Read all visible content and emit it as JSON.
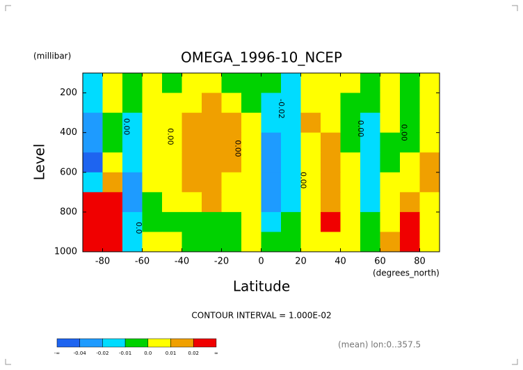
{
  "chart_data": {
    "type": "contour",
    "title": "OMEGA_1996-10_NCEP",
    "y_unit": "(millibar)",
    "y_label": "Level",
    "x_label": "Latitude",
    "x_unit": "(degrees_north)",
    "contour_interval": "CONTOUR INTERVAL = 1.000E-02",
    "footnote": "(mean) lon:0..357.5",
    "xlim": [
      -90,
      90
    ],
    "ylim": [
      1000,
      100
    ],
    "xticks": [
      -80,
      -60,
      -40,
      -20,
      0,
      20,
      40,
      60,
      80
    ],
    "yticks": [
      200,
      400,
      600,
      800,
      1000
    ],
    "x": [
      -85,
      -75,
      -65,
      -55,
      -45,
      -35,
      -25,
      -15,
      -5,
      5,
      15,
      25,
      35,
      45,
      55,
      65,
      75,
      85
    ],
    "y": [
      150,
      250,
      350,
      450,
      550,
      650,
      750,
      850,
      950
    ],
    "z": [
      [
        -0.015,
        0.005,
        -0.005,
        0.003,
        -0.005,
        0.005,
        0.005,
        -0.003,
        -0.005,
        -0.01,
        -0.015,
        0.005,
        0.005,
        0.003,
        -0.005,
        0.003,
        -0.005,
        0.005
      ],
      [
        -0.02,
        0.005,
        -0.005,
        0.005,
        0.005,
        0.008,
        0.012,
        0.008,
        -0.003,
        -0.015,
        -0.02,
        0.008,
        0.005,
        -0.003,
        -0.005,
        0.005,
        -0.005,
        0.005
      ],
      [
        -0.03,
        -0.005,
        -0.015,
        0.005,
        0.005,
        0.012,
        0.014,
        0.012,
        0.003,
        -0.02,
        -0.02,
        0.012,
        0.008,
        -0.005,
        -0.012,
        0.003,
        -0.005,
        0.005
      ],
      [
        -0.03,
        -0.005,
        -0.015,
        0.005,
        0.005,
        0.013,
        0.014,
        0.012,
        0.005,
        -0.025,
        -0.02,
        0.005,
        0.012,
        -0.003,
        -0.012,
        -0.003,
        -0.005,
        0.005
      ],
      [
        -0.045,
        0.005,
        -0.015,
        0.005,
        0.005,
        0.013,
        0.014,
        0.01,
        0.005,
        -0.025,
        -0.02,
        0.003,
        0.013,
        0.003,
        -0.012,
        -0.003,
        0.003,
        0.012
      ],
      [
        -0.02,
        0.015,
        -0.025,
        0.003,
        0.005,
        0.012,
        0.013,
        0.008,
        0.005,
        -0.025,
        -0.015,
        0.005,
        0.013,
        0.003,
        -0.012,
        0.003,
        0.005,
        0.012
      ],
      [
        0.03,
        0.03,
        -0.025,
        -0.003,
        0.005,
        0.008,
        0.011,
        0.005,
        0.005,
        -0.03,
        -0.012,
        0.005,
        0.015,
        0.003,
        -0.012,
        0.005,
        0.012,
        0.005
      ],
      [
        0.04,
        0.04,
        -0.015,
        -0.005,
        -0.003,
        -0.003,
        -0.003,
        -0.003,
        0.003,
        -0.02,
        -0.01,
        0.005,
        0.025,
        0.003,
        -0.008,
        0.008,
        0.025,
        0.005
      ],
      [
        0.04,
        0.03,
        -0.015,
        0.005,
        0.005,
        -0.005,
        -0.005,
        -0.005,
        0.003,
        -0.005,
        -0.003,
        0.005,
        0.008,
        0.005,
        -0.003,
        0.015,
        0.03,
        0.005
      ]
    ],
    "colorbar": {
      "ticks": [
        {
          "label": "-∞"
        },
        -0.04,
        -0.02,
        -0.01,
        {
          "value": 0,
          "label": "0.0"
        },
        0.01,
        0.02,
        {
          "label": "∞"
        }
      ],
      "colors": [
        "#1e64f0",
        "#1e9bff",
        "#00dcff",
        "#00d200",
        "#ffff00",
        "#f0a000",
        "#f00000"
      ]
    },
    "annotations": [
      {
        "text": "-0.02",
        "x": 10,
        "y": 280
      },
      {
        "text": "0.00",
        "x": -68,
        "y": 370
      },
      {
        "text": "0.00",
        "x": -46,
        "y": 420
      },
      {
        "text": "0.00",
        "x": -12,
        "y": 480
      },
      {
        "text": "0.00",
        "x": 21,
        "y": 640
      },
      {
        "text": "0.00",
        "x": 50,
        "y": 380
      },
      {
        "text": "0.00",
        "x": 72,
        "y": 400
      },
      {
        "text": "0.0",
        "x": -62,
        "y": 880
      }
    ]
  }
}
